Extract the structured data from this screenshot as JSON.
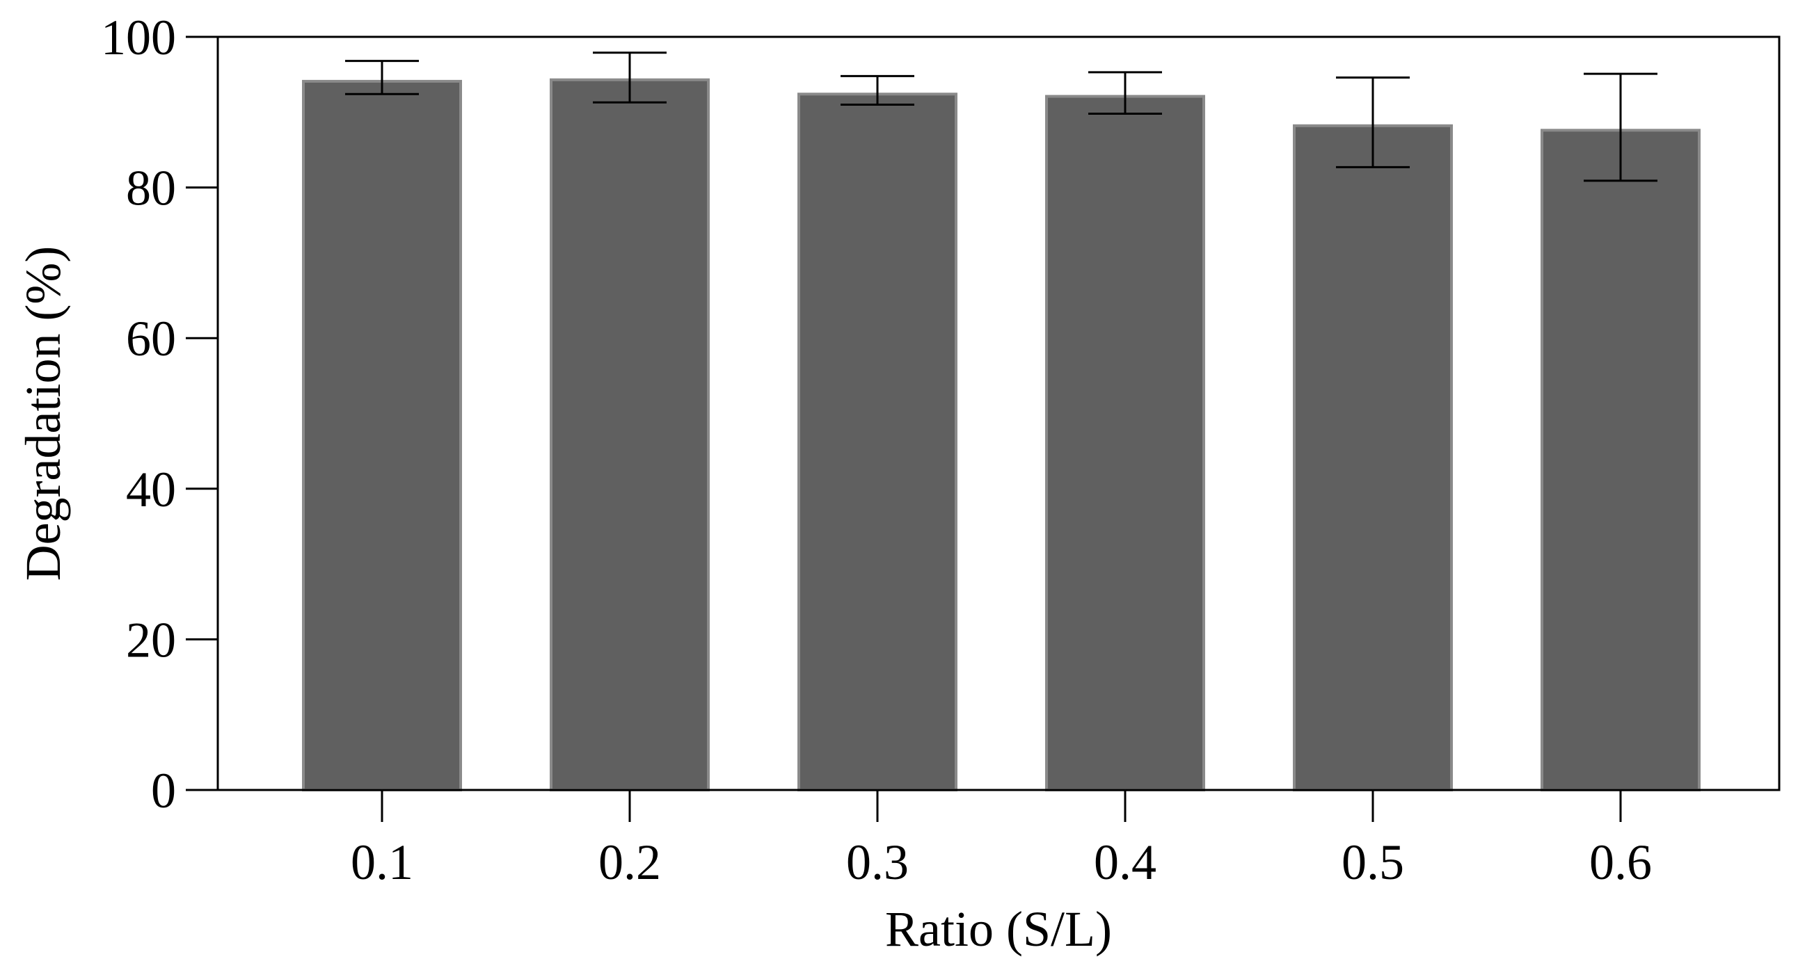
{
  "chart_data": {
    "type": "bar",
    "title": "",
    "xlabel": "Ratio (S/L)",
    "ylabel": "Degradation (%)",
    "categories": [
      "0.1",
      "0.2",
      "0.3",
      "0.4",
      "0.5",
      "0.6"
    ],
    "values": [
      94.1,
      94.3,
      92.4,
      92.1,
      88.2,
      87.6
    ],
    "error_low": [
      92.4,
      91.3,
      91.0,
      89.8,
      82.7,
      80.9
    ],
    "error_high": [
      96.8,
      97.9,
      94.8,
      95.3,
      94.6,
      95.1
    ],
    "ylim": [
      0,
      100
    ],
    "yticks": [
      "0",
      "20",
      "40",
      "60",
      "80",
      "100"
    ],
    "grid": false,
    "legend": "none",
    "bar_color": "#606060",
    "bar_edge_color": "#8a8a8a",
    "axis_color": "#000000"
  }
}
